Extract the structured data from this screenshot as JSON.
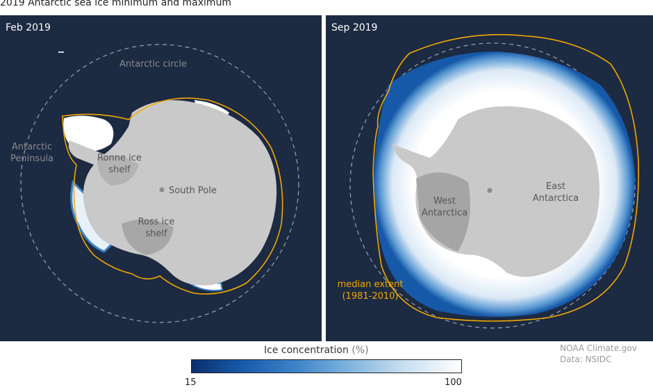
{
  "title": "2019 Antarctic sea ice minimum and maximum",
  "panels": {
    "feb": {
      "label": "Feb 2019",
      "antarctic_circle": "Antarctic circle",
      "antarctic_peninsula": "Antarctic Peninsula",
      "ronne": "Ronne ice shelf",
      "south_pole": "South Pole",
      "ross": "Ross ice shelf"
    },
    "sep": {
      "label": "Sep 2019",
      "west_antarctica": "West Antarctica",
      "east_antarctica": "East Antarctica",
      "median_extent": "median extent (1981-2010)"
    }
  },
  "legend": {
    "title": "Ice concentration",
    "unit": "(%)",
    "min": "15",
    "max": "100",
    "colors": [
      "#0b2f6e",
      "#1659a8",
      "#3a82c8",
      "#7eb3dd",
      "#c6ddf0",
      "#ffffff"
    ]
  },
  "credit": {
    "line1": "NOAA Climate.gov",
    "line2": "Data: NSIDC"
  },
  "colors": {
    "ocean": "#1c2a42",
    "continent": "#c9c9c9",
    "median_line": "#f2a900",
    "circle": "#9aa3b0"
  }
}
